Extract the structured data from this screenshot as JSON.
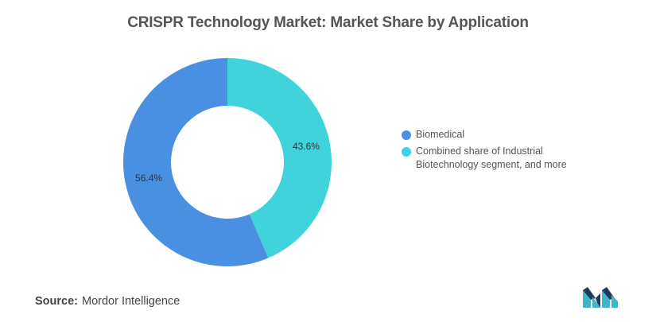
{
  "title": "CRISPR Technology Market: Market Share by Application",
  "chart_data": {
    "type": "pie",
    "subtype": "donut",
    "title": "CRISPR Technology Market: Market Share by Application",
    "categories": [
      "Biomedical",
      "Combined share of Industrial Biotechnology segment, and more"
    ],
    "values": [
      56.4,
      43.6
    ],
    "labels": [
      "56.4%",
      "43.6%"
    ],
    "colors": [
      "#4A90E2",
      "#41D3DC"
    ],
    "legend_position": "right"
  },
  "legend": [
    {
      "label": "Biomedical",
      "color": "#4A90E2"
    },
    {
      "label": "Combined share of Industrial Biotechnology segment, and more",
      "color": "#41D3DC"
    }
  ],
  "source": {
    "label": "Source:",
    "value": "Mordor Intelligence"
  },
  "logo": {
    "icon": "mordor-intelligence-logo",
    "colors": [
      "#1E3A5F",
      "#3FB6C8"
    ]
  }
}
